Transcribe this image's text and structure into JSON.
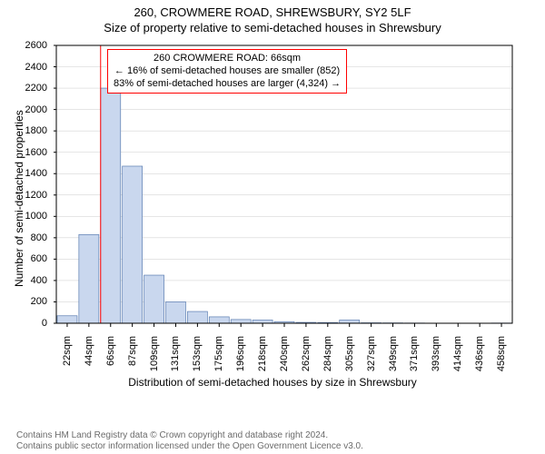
{
  "title_main": "260, CROWMERE ROAD, SHREWSBURY, SY2 5LF",
  "title_sub": "Size of property relative to semi-detached houses in Shrewsbury",
  "ylabel": "Number of semi-detached properties",
  "xlabel": "Distribution of semi-detached houses by size in Shrewsbury",
  "infobox": {
    "line1": "260 CROWMERE ROAD: 66sqm",
    "line2": "← 16% of semi-detached houses are smaller (852)",
    "line3": "83% of semi-detached houses are larger (4,324) →"
  },
  "footer": {
    "line1": "Contains HM Land Registry data © Crown copyright and database right 2024.",
    "line2": "Contains public sector information licensed under the Open Government Licence v3.0."
  },
  "chart": {
    "type": "histogram",
    "bar_fill": "#c9d7ee",
    "bar_stroke": "#5b7db1",
    "marker_color": "#ff0000",
    "grid_color": "#cccccc",
    "background_color": "#ffffff",
    "ylim": [
      0,
      2600
    ],
    "ytick_step": 200,
    "ylabel_fontsize": 12,
    "xlabel_fontsize": 12,
    "tick_fontsize": 11,
    "x_tick_labels": [
      "22sqm",
      "44sqm",
      "66sqm",
      "87sqm",
      "109sqm",
      "131sqm",
      "153sqm",
      "175sqm",
      "196sqm",
      "218sqm",
      "240sqm",
      "262sqm",
      "284sqm",
      "305sqm",
      "327sqm",
      "349sqm",
      "371sqm",
      "393sqm",
      "414sqm",
      "436sqm",
      "458sqm"
    ],
    "marker_x_category": "66sqm",
    "bars": [
      {
        "x": "22sqm",
        "v": 70
      },
      {
        "x": "44sqm",
        "v": 830
      },
      {
        "x": "66sqm",
        "v": 2200
      },
      {
        "x": "87sqm",
        "v": 1470
      },
      {
        "x": "109sqm",
        "v": 450
      },
      {
        "x": "131sqm",
        "v": 200
      },
      {
        "x": "153sqm",
        "v": 110
      },
      {
        "x": "175sqm",
        "v": 60
      },
      {
        "x": "196sqm",
        "v": 35
      },
      {
        "x": "218sqm",
        "v": 30
      },
      {
        "x": "240sqm",
        "v": 15
      },
      {
        "x": "262sqm",
        "v": 8
      },
      {
        "x": "284sqm",
        "v": 6
      },
      {
        "x": "305sqm",
        "v": 30
      },
      {
        "x": "327sqm",
        "v": 4
      },
      {
        "x": "349sqm",
        "v": 3
      },
      {
        "x": "371sqm",
        "v": 2
      },
      {
        "x": "393sqm",
        "v": 0
      },
      {
        "x": "414sqm",
        "v": 0
      },
      {
        "x": "436sqm",
        "v": 0
      },
      {
        "x": "458sqm",
        "v": 2
      }
    ]
  }
}
